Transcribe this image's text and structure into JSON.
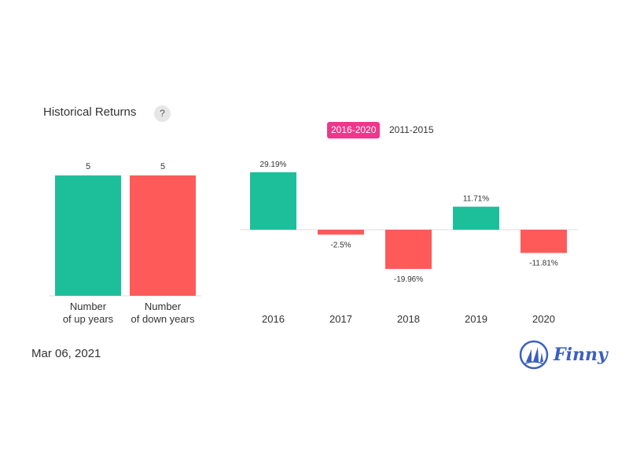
{
  "header": {
    "title": "Historical Returns",
    "help_label": "?"
  },
  "tabs": [
    {
      "label": "2016-2020",
      "active": true
    },
    {
      "label": "2011-2015",
      "active": false
    }
  ],
  "footer": {
    "date": "Mar 06, 2021",
    "brand": "Finny"
  },
  "colors": {
    "up": "#1dbf9b",
    "down": "#ff5a5a",
    "accent": "#f0368b",
    "brand": "#3b5fc0"
  },
  "chart_data": [
    {
      "type": "bar",
      "categories": [
        "Number\nof up years",
        "Number\nof down years"
      ],
      "values": [
        5,
        5
      ],
      "value_labels": [
        "5",
        "5"
      ],
      "colors": [
        "#1dbf9b",
        "#ff5a5a"
      ],
      "ylim": [
        0,
        5
      ],
      "grid": false
    },
    {
      "type": "bar",
      "categories": [
        "2016",
        "2017",
        "2018",
        "2019",
        "2020"
      ],
      "values": [
        29.19,
        -2.5,
        -19.96,
        11.71,
        -11.81
      ],
      "value_labels": [
        "29.19%",
        "-2.5%",
        "-19.96%",
        "11.71%",
        "-11.81%"
      ],
      "ylim": [
        -25,
        30
      ],
      "grid": false
    }
  ]
}
